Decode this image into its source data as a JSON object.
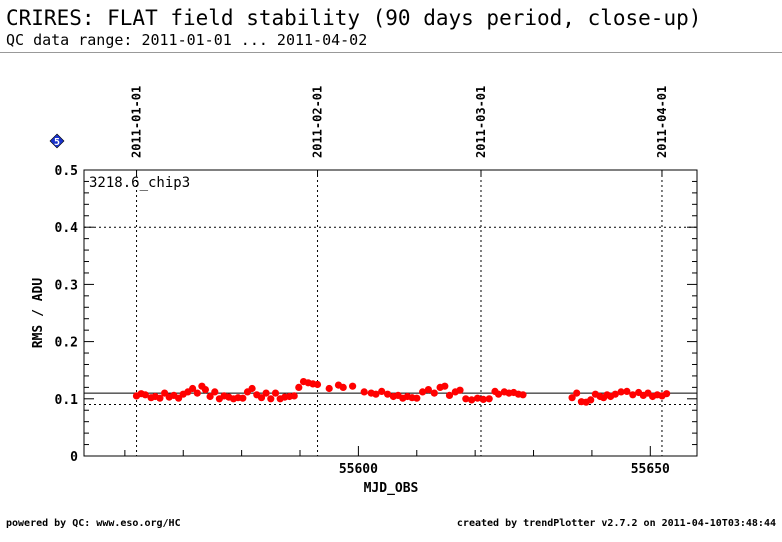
{
  "header": {
    "title": "CRIRES: FLAT field stability (90 days period, close-up)",
    "subtitle": "QC data range: 2011-01-01 ... 2011-04-02"
  },
  "footer": {
    "left": "powered by QC: www.eso.org/HC",
    "right": "created by trendPlotter v2.7.2 on 2011-04-10T03:48:44"
  },
  "badge": {
    "label": "5",
    "color": "#1a33cc"
  },
  "chart_data": {
    "type": "scatter",
    "title": "",
    "xlabel": "MJD_OBS",
    "ylabel": "RMS / ADU",
    "panel_label": "3218.6_chip3",
    "xlim": [
      55553.0,
      55658.0
    ],
    "ylim": [
      0,
      0.5
    ],
    "x_ticks": [
      55600,
      55650
    ],
    "y_ticks": [
      0,
      0.1,
      0.2,
      0.3,
      0.4,
      0.5
    ],
    "y_tick_labels": [
      "0",
      "0.1",
      "0.2",
      "0.3",
      "0.4",
      "0.5"
    ],
    "date_markers": [
      {
        "label": "2011-01-01",
        "mjd": 55562
      },
      {
        "label": "2011-02-01",
        "mjd": 55593
      },
      {
        "label": "2011-03-01",
        "mjd": 55621
      },
      {
        "label": "2011-04-01",
        "mjd": 55652
      }
    ],
    "reference_lines": {
      "median": 0.11,
      "lower": 0.09,
      "upper": 0.4
    },
    "grid": false,
    "marker_color": "#ff0000",
    "x": [
      55562.0,
      55562.8,
      55563.5,
      55564.5,
      55565.2,
      55566.0,
      55566.8,
      55567.6,
      55568.4,
      55569.2,
      55570.0,
      55570.8,
      55571.6,
      55572.4,
      55573.2,
      55573.8,
      55574.6,
      55575.4,
      55576.2,
      55577.0,
      55577.8,
      55578.6,
      55579.4,
      55580.2,
      55581.0,
      55581.8,
      55582.6,
      55583.4,
      55584.2,
      55585.0,
      55585.8,
      55586.6,
      55587.4,
      55588.2,
      55589.0,
      55589.8,
      55590.6,
      55591.4,
      55592.2,
      55593.0,
      55595.0,
      55596.6,
      55597.4,
      55599.0,
      55601.0,
      55602.2,
      55603.0,
      55604.0,
      55605.0,
      55606.0,
      55606.8,
      55607.6,
      55608.4,
      55609.2,
      55610.0,
      55611.0,
      55612.0,
      55613.0,
      55614.0,
      55614.8,
      55615.6,
      55616.6,
      55617.4,
      55618.4,
      55619.4,
      55620.4,
      55621.4,
      55622.4,
      55623.4,
      55624.0,
      55625.0,
      55625.8,
      55626.6,
      55627.4,
      55628.2,
      55636.6,
      55637.4,
      55638.2,
      55639.0,
      55639.8,
      55640.6,
      55641.4,
      55642.0,
      55642.6,
      55643.2,
      55644.0,
      55645.0,
      55646.0,
      55647.0,
      55648.0,
      55648.8,
      55649.6,
      55650.4,
      55651.2,
      55652.0,
      55652.8
    ],
    "y": [
      0.105,
      0.109,
      0.107,
      0.102,
      0.104,
      0.101,
      0.11,
      0.103,
      0.106,
      0.101,
      0.108,
      0.112,
      0.118,
      0.11,
      0.122,
      0.116,
      0.104,
      0.112,
      0.1,
      0.105,
      0.103,
      0.1,
      0.102,
      0.101,
      0.112,
      0.118,
      0.107,
      0.102,
      0.11,
      0.1,
      0.11,
      0.1,
      0.103,
      0.104,
      0.105,
      0.12,
      0.13,
      0.128,
      0.126,
      0.125,
      0.118,
      0.124,
      0.12,
      0.122,
      0.112,
      0.11,
      0.108,
      0.113,
      0.108,
      0.104,
      0.106,
      0.101,
      0.104,
      0.102,
      0.101,
      0.112,
      0.116,
      0.11,
      0.12,
      0.122,
      0.106,
      0.112,
      0.115,
      0.1,
      0.098,
      0.101,
      0.099,
      0.1,
      0.113,
      0.108,
      0.112,
      0.11,
      0.111,
      0.108,
      0.107,
      0.102,
      0.11,
      0.095,
      0.094,
      0.098,
      0.108,
      0.104,
      0.102,
      0.107,
      0.104,
      0.108,
      0.112,
      0.113,
      0.107,
      0.111,
      0.106,
      0.11,
      0.104,
      0.107,
      0.105,
      0.109
    ]
  }
}
